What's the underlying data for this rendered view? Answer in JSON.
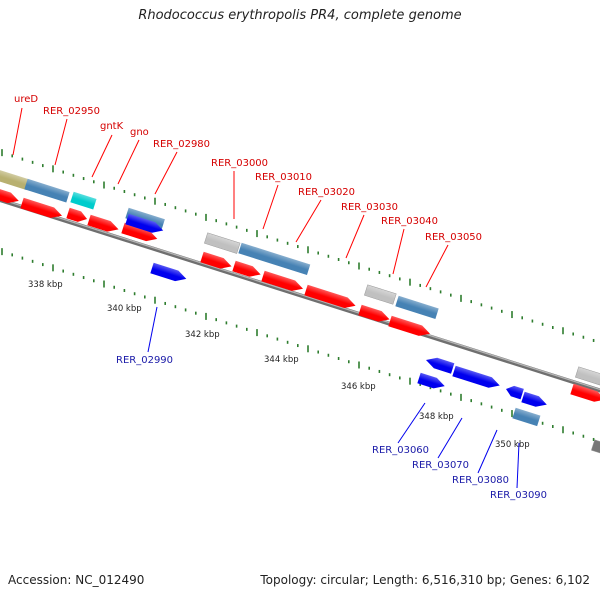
{
  "title": "Rhodococcus erythropolis PR4, complete genome",
  "footer": {
    "accession": "Accession: NC_012490",
    "summary": "Topology: circular; Length: 6,516,310 bp; Genes: 6,102"
  },
  "colors": {
    "forward_cds": "#ff0000",
    "reverse_cds": "#0000ee",
    "annotated": "#4682b4",
    "hypothetical": "#c0c0c0",
    "other": "#b8b070",
    "cyan": "#00cccc",
    "backbone": "#8a8a8a",
    "tick": "#2e7d2e"
  },
  "scale_labels": [
    "338 kbp",
    "340 kbp",
    "342 kbp",
    "344 kbp",
    "346 kbp",
    "348 kbp",
    "350 kbp"
  ],
  "top_genes": [
    "ureD",
    "RER_02950",
    "gntK",
    "gno",
    "RER_02980",
    "RER_03000",
    "RER_03010",
    "RER_03020",
    "RER_03030",
    "RER_03040",
    "RER_03050"
  ],
  "bottom_genes": [
    "RER_02990",
    "RER_03060",
    "RER_03070",
    "RER_03080",
    "RER_03090"
  ]
}
